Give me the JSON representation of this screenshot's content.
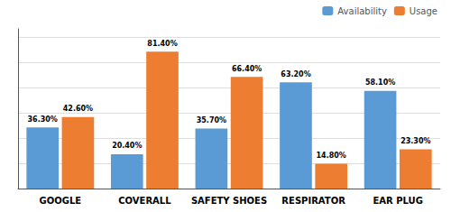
{
  "chart_data": {
    "type": "bar",
    "categories": [
      "GOOGLE",
      "COVERALL",
      "SAFETY SHOES",
      "RESPIRATOR",
      "EAR PLUG"
    ],
    "series": [
      {
        "name": "Availability",
        "color": "#5B9BD5",
        "values": [
          36.3,
          20.4,
          35.7,
          63.2,
          58.1
        ],
        "value_labels": [
          "36.30%",
          "20.40%",
          "35.70%",
          "63.20%",
          "58.10%"
        ]
      },
      {
        "name": "Usage",
        "color": "#ED7D31",
        "values": [
          42.6,
          81.4,
          66.4,
          14.8,
          23.3
        ],
        "value_labels": [
          "42.60%",
          "81.40%",
          "66.40%",
          "14.80%",
          "23.30%"
        ]
      }
    ],
    "ylim": [
      0,
      95
    ],
    "yticks": [
      0,
      15,
      30,
      45,
      60,
      75,
      90
    ],
    "grid": true,
    "legend": "upper right",
    "data_labels": true,
    "tick_labels": "x"
  }
}
